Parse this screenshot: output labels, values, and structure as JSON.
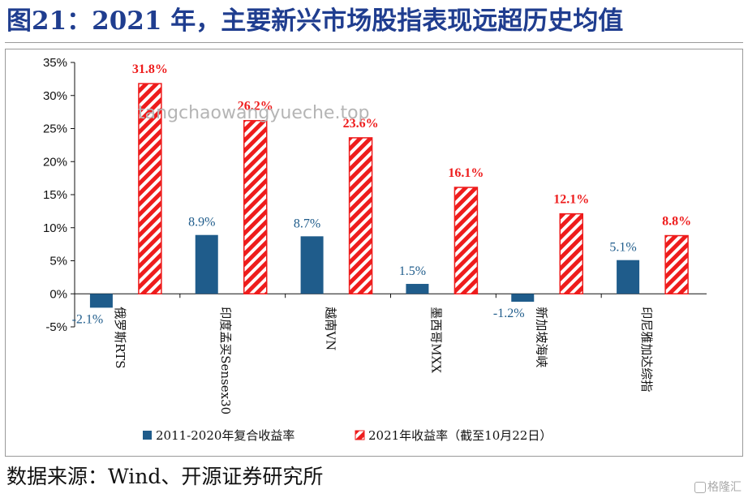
{
  "page": {
    "title": "图21：2021 年，主要新兴市场股指表现远超历史均值",
    "source": "数据来源：Wind、开源证券研究所",
    "watermark": "tangchaowangyueche.top",
    "logo": "格隆汇"
  },
  "chart_data": {
    "type": "bar",
    "categories": [
      "俄罗斯RTS",
      "印度孟买Sensex30",
      "越南VN",
      "墨西哥MXX",
      "新加坡海峡",
      "印尼雅加达综指"
    ],
    "series": [
      {
        "name": "2011-2020年复合收益率",
        "values": [
          -2.1,
          8.9,
          8.7,
          1.5,
          -1.2,
          5.1
        ],
        "labels": [
          "-2.1%",
          "8.9%",
          "8.7%",
          "1.5%",
          "-1.2%",
          "5.1%"
        ],
        "color": "#1f5c8b"
      },
      {
        "name": "2021年收益率（截至10月22日）",
        "values": [
          31.8,
          26.2,
          23.6,
          16.1,
          12.1,
          8.8
        ],
        "labels": [
          "31.8%",
          "26.2%",
          "23.6%",
          "16.1%",
          "12.1%",
          "8.8%"
        ],
        "color": "#ee1c1c"
      }
    ],
    "yticks": [
      "-5%",
      "0%",
      "5%",
      "10%",
      "15%",
      "20%",
      "25%",
      "30%",
      "35%"
    ],
    "ylim": [
      -5,
      35
    ],
    "legend_position": "bottom",
    "grid": false
  }
}
